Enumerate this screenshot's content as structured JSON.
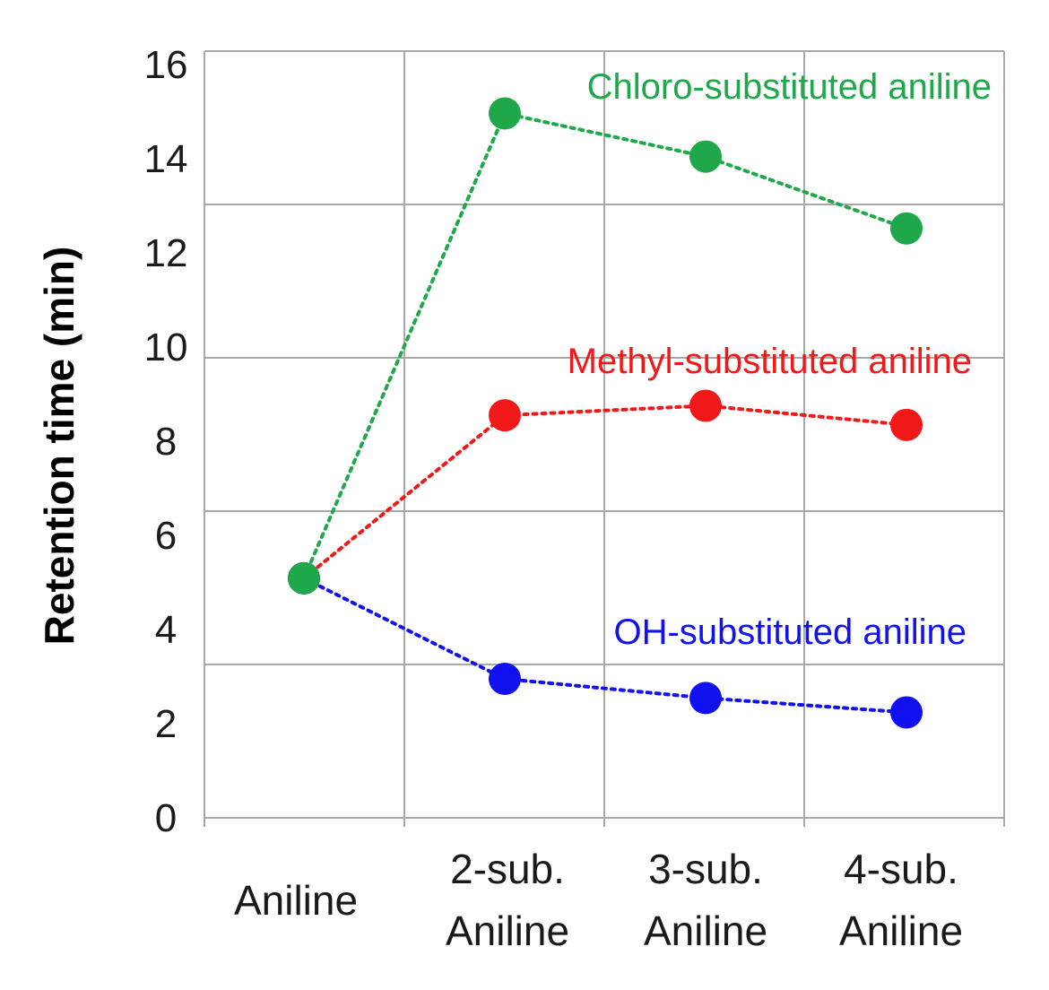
{
  "chart_data": {
    "type": "line",
    "title": "",
    "xlabel": "",
    "ylabel": "Retention time (min)",
    "ylim": [
      0,
      16
    ],
    "yticks": [
      "0",
      "2",
      "4",
      "6",
      "8",
      "10",
      "12",
      "14",
      "16"
    ],
    "categories": [
      {
        "line1": "Aniline",
        "line2": ""
      },
      {
        "line1": "2-sub.",
        "line2": "Aniline"
      },
      {
        "line1": "3-sub.",
        "line2": "Aniline"
      },
      {
        "line1": "4-sub.",
        "line2": "Aniline"
      }
    ],
    "grid": true,
    "series": [
      {
        "key": "chloro",
        "name": "Chloro-substituted aniline",
        "color": "#1fa84a",
        "values": [
          5.0,
          14.7,
          13.8,
          12.3
        ]
      },
      {
        "key": "methyl",
        "name": "Methyl-substituted aniline",
        "color": "#f01818",
        "values": [
          5.0,
          8.4,
          8.6,
          8.2
        ]
      },
      {
        "key": "oh",
        "name": "OH-substituted aniline",
        "color": "#1010f0",
        "values": [
          5.0,
          2.9,
          2.5,
          2.2
        ]
      }
    ]
  }
}
